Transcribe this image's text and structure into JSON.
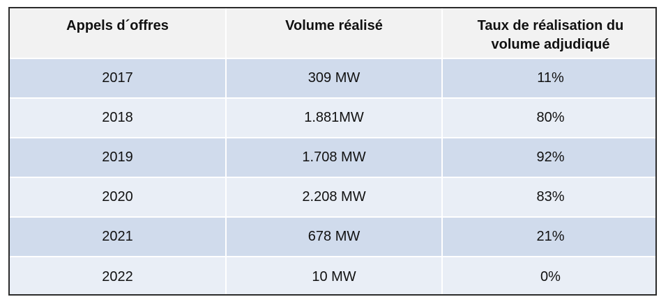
{
  "table": {
    "headers": {
      "col1": "Appels d´offres",
      "col2": "Volume réalisé",
      "col3_line1": "Taux de réalisation du",
      "col3_line2": "volume adjudiqué"
    },
    "rows": [
      {
        "year": "2017",
        "volume": "309 MW",
        "rate": "11%"
      },
      {
        "year": "2018",
        "volume": "1.881MW",
        "rate": "80%"
      },
      {
        "year": "2019",
        "volume": "1.708 MW",
        "rate": "92%"
      },
      {
        "year": "2020",
        "volume": "2.208 MW",
        "rate": "83%"
      },
      {
        "year": "2021",
        "volume": "678 MW",
        "rate": "21%"
      },
      {
        "year": "2022",
        "volume": "10 MW",
        "rate": "0%"
      }
    ]
  },
  "colors": {
    "header_bg": "#f2f2f2",
    "row_dark": "#d0dbec",
    "row_light": "#e9eef6",
    "border": "#2b2b2b"
  }
}
